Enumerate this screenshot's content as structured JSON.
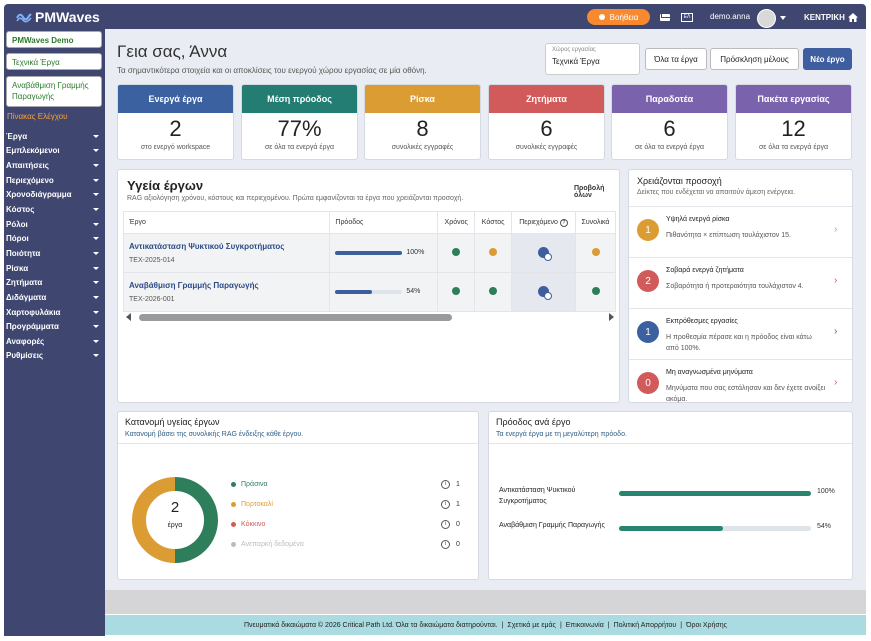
{
  "brand": {
    "name": "PMWaves"
  },
  "topbar": {
    "help_label": "Βοήθεια",
    "lang_label": "ΕΛ",
    "user": "demo.anna",
    "home_label": "ΚΕΝΤΡΙΚΗ"
  },
  "sidebar": {
    "buttons": [
      "PMWaves Demo",
      "Τεχνικά Έργα",
      "Αναβάθμιση Γραμμής Παραγωγής"
    ],
    "section": "Πίνακας Ελέγχου",
    "items": [
      "Έργα",
      "Εμπλεκόμενοι",
      "Απαιτήσεις",
      "Περιεχόμενο",
      "Χρονοδιάγραμμα",
      "Κόστος",
      "Ρόλοι",
      "Πόροι",
      "Ποιότητα",
      "Ρίσκα",
      "Ζητήματα",
      "Διδάγματα",
      "Χαρτοφυλάκια",
      "Προγράμματα",
      "Αναφορές",
      "Ρυθμίσεις"
    ]
  },
  "header": {
    "greeting": "Γεια σας, Άννα",
    "subtitle": "Τα σημαντικότερα στοιχεία και οι αποκλίσεις του ενεργού χώρου εργασίας σε μία οθόνη.",
    "workspace_label": "Χώρος εργασίας",
    "workspace_value": "Τεχνικά Έργα",
    "btn_all": "Όλα τα έργα",
    "btn_invite": "Πρόσκληση μέλους",
    "btn_new": "Νέο έργο"
  },
  "kpis": [
    {
      "title": "Ενεργά έργα",
      "value": "2",
      "sub": "στο ενεργό workspace",
      "color": "#3b61a0"
    },
    {
      "title": "Μέση πρόοδος",
      "value": "77%",
      "sub": "σε όλα τα ενεργά έργα",
      "color": "#247d72"
    },
    {
      "title": "Ρίσκα",
      "value": "8",
      "sub": "συνολικές εγγραφές",
      "color": "#dc9c34"
    },
    {
      "title": "Ζητήματα",
      "value": "6",
      "sub": "συνολικές εγγραφές",
      "color": "#d15b5b"
    },
    {
      "title": "Παραδοτέα",
      "value": "6",
      "sub": "σε όλα τα ενεργά έργα",
      "color": "#7b62ad"
    },
    {
      "title": "Πακέτα εργασίας",
      "value": "12",
      "sub": "σε όλα τα ενεργά έργα",
      "color": "#7b62ad"
    }
  ],
  "health": {
    "title": "Υγεία έργων",
    "subtitle": "RAG αξιολόγηση χρόνου, κόστους και περιεχομένου. Πρώτα εμφανίζονται τα έργα που χρειάζονται προσοχή.",
    "view_all": "Προβολή όλων",
    "columns": [
      "Έργο",
      "Πρόοδος",
      "Χρόνος",
      "Κόστος",
      "Περιεχόμενο",
      "Συνολικά"
    ],
    "rows": [
      {
        "name": "Αντικατάσταση Ψυκτικού Συγκροτήματος",
        "code": "TEX-2025-014",
        "progress": 100,
        "progress_label": "100%",
        "time": "#2e7d5b",
        "cost": "#dc9c34",
        "overall": "#dc9c34"
      },
      {
        "name": "Αναβάθμιση Γραμμής Παραγωγής",
        "code": "TEX-2026-001",
        "progress": 54,
        "progress_label": "54%",
        "time": "#2e7d5b",
        "cost": "#2e7d5b",
        "overall": "#2e7d5b"
      }
    ]
  },
  "attention": {
    "title": "Χρειάζονται προσοχή",
    "subtitle": "Δείκτες που ενδέχεται να απαιτούν άμεση ενέργεια.",
    "items": [
      {
        "count": "1",
        "title": "Υψηλά ενεργά ρίσκα",
        "desc": "Πιθανότητα × επίπτωση τουλάχιστον 15.",
        "color": "#dc9c34",
        "chev": "#dc9c34"
      },
      {
        "count": "2",
        "title": "Σοβαρά ενεργά ζητήματα",
        "desc": "Σοβαρότητα ή προτεραιότητα τουλάχιστον 4.",
        "color": "#d15b5b",
        "chev": "#d15b5b"
      },
      {
        "count": "1",
        "title": "Εκπρόθεσμες εργασίες",
        "desc": "Η προθεσμία πέρασε και η πρόοδος είναι κάτω από 100%.",
        "color": "#3b61a0",
        "chev": "#3b61a0"
      },
      {
        "count": "0",
        "title": "Μη αναγνωσμένα μηνύματα",
        "desc": "Μηνύματα που σας εστάλησαν και δεν έχετε ανοίξει ακόμα.",
        "color": "#d15b5b",
        "chev": "#d15b5b"
      }
    ]
  },
  "distribution": {
    "title": "Κατανομή υγείας έργων",
    "subtitle": "Κατανομή βάσει της συνολικής RAG ένδειξης κάθε έργου.",
    "total": "2",
    "total_label": "έργα",
    "legend": [
      {
        "label": "Πράσινα",
        "count": "1",
        "color": "#2e7d5b"
      },
      {
        "label": "Πορτοκαλί",
        "count": "1",
        "color": "#dc9c34"
      },
      {
        "label": "Κόκκινο",
        "count": "0",
        "color": "#d15b5b"
      },
      {
        "label": "Ανεπαρκή δεδομένα",
        "count": "0",
        "color": "#b9bcc4"
      }
    ]
  },
  "chart_data": {
    "type": "pie",
    "categories": [
      "Πράσινα",
      "Πορτοκαλί",
      "Κόκκινο",
      "Ανεπαρκή δεδομένα"
    ],
    "values": [
      1,
      1,
      0,
      0
    ]
  },
  "progress_panel": {
    "title": "Πρόοδος ανά έργο",
    "subtitle": "Τα ενεργά έργα με τη μεγαλύτερη πρόοδο.",
    "rows": [
      {
        "name": "Αντικατάσταση Ψυκτικού Συγκροτήματος",
        "value": 100,
        "label": "100%"
      },
      {
        "name": "Αναβάθμιση Γραμμής Παραγωγής",
        "value": 54,
        "label": "54%"
      }
    ]
  },
  "footer": {
    "copyright": "Πνευματικά δικαιώματα © 2026 Critical Path Ltd. Όλα τα δικαιώματα διατηρούνται.",
    "links": [
      "Σχετικά με εμάς",
      "Επικοινωνία",
      "Πολιτική Απορρήτου",
      "Όροι Χρήσης"
    ]
  }
}
